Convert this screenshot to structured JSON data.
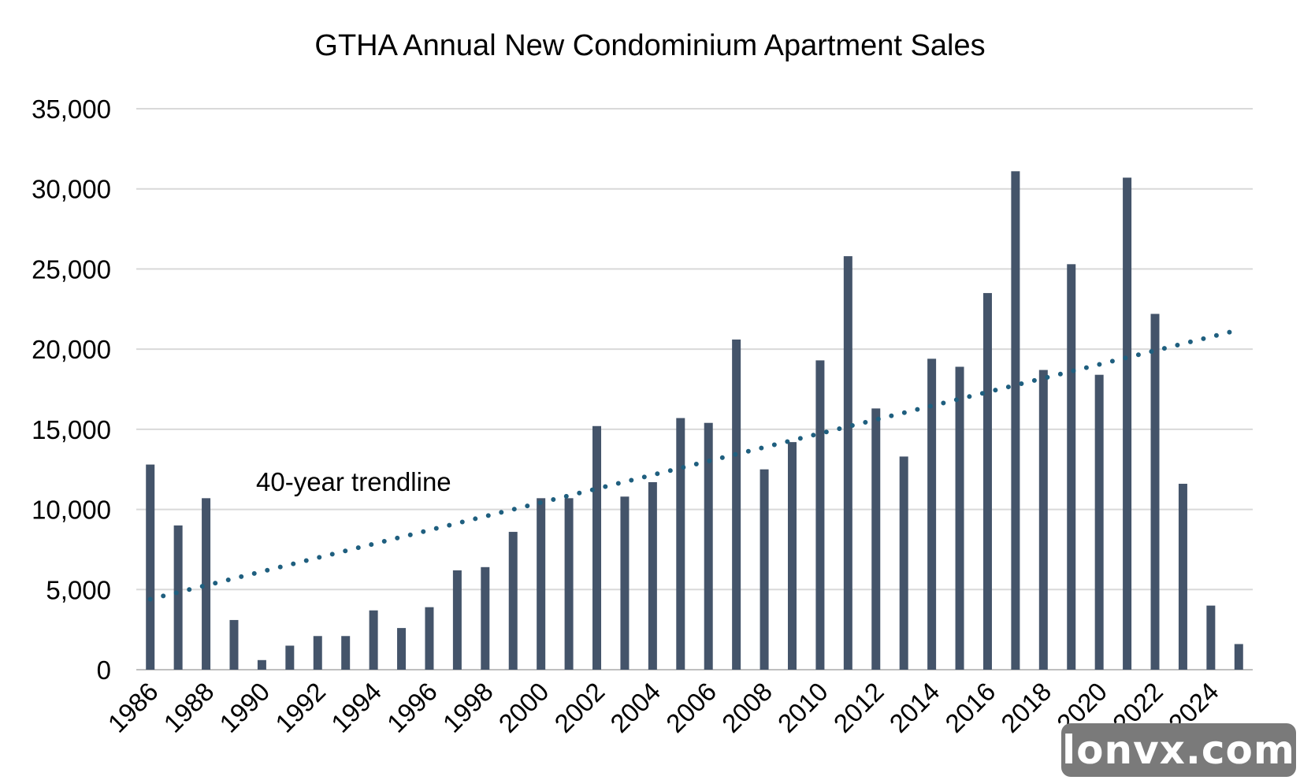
{
  "chart_data": {
    "type": "bar",
    "title": "GTHA Annual New Condominium Apartment Sales",
    "xlabel": "",
    "ylabel": "",
    "ylim": [
      0,
      35000
    ],
    "yticks": [
      0,
      5000,
      10000,
      15000,
      20000,
      25000,
      30000,
      35000
    ],
    "ytick_labels": [
      "0",
      "5,000",
      "10,000",
      "15,000",
      "20,000",
      "25,000",
      "30,000",
      "35,000"
    ],
    "categories": [
      "1986",
      "1987",
      "1988",
      "1989",
      "1990",
      "1991",
      "1992",
      "1993",
      "1994",
      "1995",
      "1996",
      "1997",
      "1998",
      "1999",
      "2000",
      "2001",
      "2002",
      "2003",
      "2004",
      "2005",
      "2006",
      "2007",
      "2008",
      "2009",
      "2010",
      "2011",
      "2012",
      "2013",
      "2014",
      "2015",
      "2016",
      "2017",
      "2018",
      "2019",
      "2020",
      "2021",
      "2022",
      "2023",
      "2024",
      "2025"
    ],
    "xtick_labels": [
      "1986",
      "1988",
      "1990",
      "1992",
      "1994",
      "1996",
      "1998",
      "2000",
      "2002",
      "2004",
      "2006",
      "2008",
      "2010",
      "2012",
      "2014",
      "2016",
      "2018",
      "2020",
      "2022",
      "2024"
    ],
    "values": [
      12800,
      9000,
      10700,
      3100,
      600,
      1500,
      2100,
      2100,
      3700,
      2600,
      3900,
      6200,
      6400,
      8600,
      10700,
      10700,
      15200,
      10800,
      11700,
      15700,
      15400,
      20600,
      12500,
      14200,
      19300,
      25800,
      16300,
      13300,
      19400,
      18900,
      23500,
      31100,
      18700,
      25300,
      18400,
      30700,
      22200,
      11600,
      4000,
      1600
    ],
    "trendline": {
      "x_start": "1986",
      "y_start": 4400,
      "x_end": "2025",
      "y_end": 21200,
      "style": "dotted"
    },
    "annotations": [
      {
        "text": "40-year trendline"
      }
    ],
    "grid": true,
    "legend": "none",
    "colors": {
      "bar": "#44546a",
      "trendline": "#1f5f7f",
      "grid": "#d9d9d9"
    }
  },
  "watermark": {
    "text": "lonvx.com"
  }
}
